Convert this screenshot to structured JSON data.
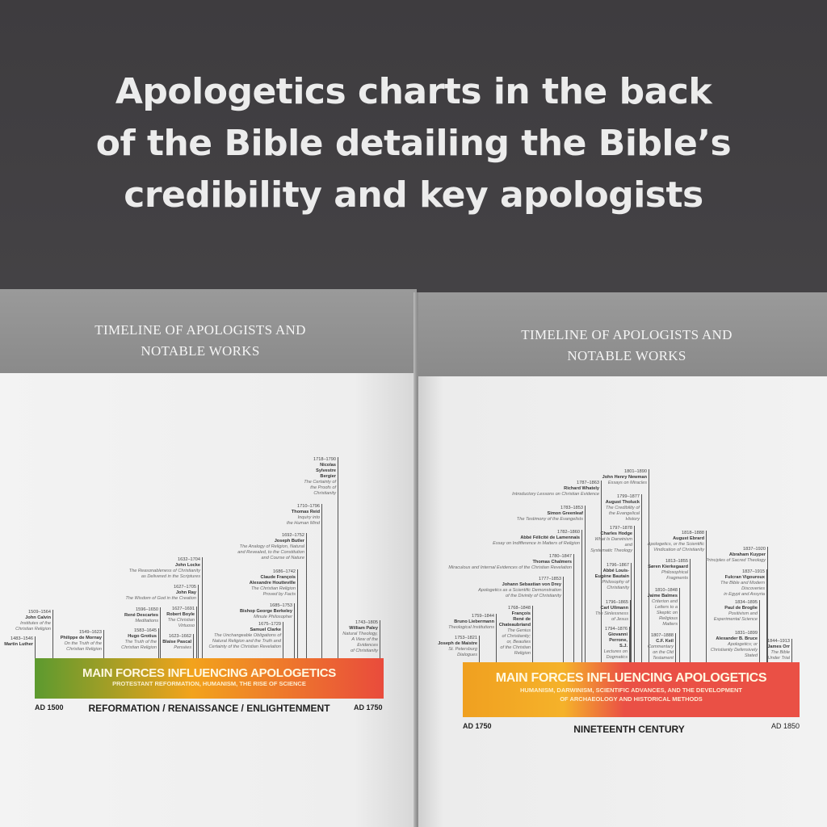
{
  "headline": {
    "line1": "Apologetics charts in the back",
    "line2": "of the Bible detailing the Bible’s",
    "line3": "credibility and key apologists"
  },
  "left_page": {
    "title_line1": "TIMELINE OF APOLOGISTS AND",
    "title_line2": "NOTABLE WORKS",
    "bar": {
      "title": "MAIN FORCES INFLUENCING APOLOGETICS",
      "subtitle": "PROTESTANT REFORMATION, HUMANISM, THE RISE OF SCIENCE",
      "colors": [
        "#5c9a2f",
        "#f2a31c",
        "#e94b3c"
      ]
    },
    "start_label": "AD 1500",
    "end_label": "AD 1750",
    "era": "REFORMATION / RENAISSANCE / ENLIGHTENMENT",
    "entries": [
      {
        "dates": "1483–1546",
        "name": "Martin Luther",
        "work": ""
      },
      {
        "dates": "1509–1564",
        "name": "John Calvin",
        "work": "Institutes of the\nChristian Religion"
      },
      {
        "dates": "1549–1623",
        "name": "Philippe de Mornay",
        "work": "On the Truth of the\nChristian Religion"
      },
      {
        "dates": "1583–1645",
        "name": "Hugo Grotius",
        "work": "The Truth of the\nChristian Religion"
      },
      {
        "dates": "1596–1650",
        "name": "René Descartes",
        "work": "Meditations"
      },
      {
        "dates": "1623–1662",
        "name": "Blaise Pascal",
        "work": "Pensées"
      },
      {
        "dates": "1627–1691",
        "name": "Robert Boyle",
        "work": "The Christian\nVirtuoso"
      },
      {
        "dates": "1627–1705",
        "name": "John Ray",
        "work": "The Wisdom of God in the Creation"
      },
      {
        "dates": "1632–1704",
        "name": "John Locke",
        "work": "The Reasonableness of Christianity\nas Delivered in the Scriptures"
      },
      {
        "dates": "1675–1729",
        "name": "Samuel Clarke",
        "work": "The Unchangeable Obligations of\nNatural Religion and the Truth and\nCertainty of the Christian Revelation"
      },
      {
        "dates": "1685–1753",
        "name": "Bishop George Berkeley",
        "work": "Minute Philosopher"
      },
      {
        "dates": "1686–1742",
        "name": "Claude François\nAlexandre Houtteville",
        "work": "The Christian Religion\nProved by Facts"
      },
      {
        "dates": "1692–1752",
        "name": "Joseph Butler",
        "work": "The Analogy of Religion, Natural\nand Revealed, to the Constitution\nand Course of Nature"
      },
      {
        "dates": "1710–1796",
        "name": "Thomas Reid",
        "work": "Inquiry into\nthe Human Mind"
      },
      {
        "dates": "1718–1790",
        "name": "Nicolas\nSylvestre\nBergier",
        "work": "The Certainty of\nthe Proofs of\nChristianity"
      },
      {
        "dates": "1743–1805",
        "name": "William Paley",
        "work": "Natural Theology,\nA View of the\nEvidences\nof Christianity"
      }
    ]
  },
  "right_page": {
    "title_line1": "TIMELINE OF APOLOGISTS AND",
    "title_line2": "NOTABLE WORKS",
    "bar": {
      "title": "MAIN FORCES INFLUENCING APOLOGETICS",
      "subtitle": "HUMANISM, DARWINISM, SCIENTIFIC ADVANCES, AND THE DEVELOPMENT\nOF ARCHAEOLOGY AND HISTORICAL METHODS",
      "colors": [
        "#f0a020",
        "#f5b22a",
        "#ea5045"
      ]
    },
    "start_label": "AD 1750",
    "end_label": "AD 1850",
    "era": "NINETEENTH CENTURY",
    "entries": [
      {
        "dates": "1753–1821",
        "name": "Joseph de Maistre",
        "work": "St. Petersburg\nDialogues"
      },
      {
        "dates": "1759–1844",
        "name": "Bruno Liebermann",
        "work": "Theological Institutions"
      },
      {
        "dates": "1768–1848",
        "name": "François\nRené de\nChateaubriand",
        "work": "The Genius\nof Christianity;\nor, Beauties\nof the Christian\nReligion"
      },
      {
        "dates": "1777–1853",
        "name": "Johann Sebastian von Drey",
        "work": "Apologetics as a Scientific Demonstration\nof the Divinity of Christianity"
      },
      {
        "dates": "1780–1847",
        "name": "Thomas Chalmers",
        "work": "Miraculous and Internal Evidences of the Christian Revelation"
      },
      {
        "dates": "1782–1860",
        "name": "Abbé Félicité de Lamennais",
        "work": "Essay on Indifference in Matters of Religion"
      },
      {
        "dates": "1783–1853",
        "name": "Simon Greenleaf",
        "work": "The Testimony of the Evangelists"
      },
      {
        "dates": "1787–1863",
        "name": "Richard Whately",
        "work": "Introductory Lessons on Christian Evidence"
      },
      {
        "dates": "1794–1876",
        "name": "Giovanni\nPerrone,\nS.J.",
        "work": "Lectures on\nDogmatics"
      },
      {
        "dates": "1796–1865",
        "name": "Carl Ullmann",
        "work": "The Sinlessness\nof Jesus"
      },
      {
        "dates": "1796–1867",
        "name": "Abbé Louis-\nEugène Bautain",
        "work": "Philosophy of\nChristianity"
      },
      {
        "dates": "1797–1878",
        "name": "Charles Hodge",
        "work": "What Is Darwinism\nand\nSystematic Theology"
      },
      {
        "dates": "1799–1877",
        "name": "August Tholuck",
        "work": "The Credibility of\nthe Evangelical\nHistory"
      },
      {
        "dates": "1801–1890",
        "name": "John Henry Newman",
        "work": "Essays on Miracles"
      },
      {
        "dates": "1807–1888",
        "name": "C.F. Keil",
        "work": "Commentary\non the Old\nTestament"
      },
      {
        "dates": "1810–1848",
        "name": "Jaime Balmes",
        "work": "Criterion and\nLetters to a\nSkeptic on\nReligious\nMatters"
      },
      {
        "dates": "1813–1855",
        "name": "Søren Kierkegaard",
        "work": "Philosophical\nFragments"
      },
      {
        "dates": "1818–1888",
        "name": "August Ebrard",
        "work": "Apologetics, or the Scientific\nVindication of Christianity"
      },
      {
        "dates": "1831–1899",
        "name": "Alexander B. Bruce",
        "work": "Apologetics; or\nChristianity Defensively\nStated"
      },
      {
        "dates": "1834–1895",
        "name": "Paul de Broglie",
        "work": "Positivism and\nExperimental Science"
      },
      {
        "dates": "1837–1915",
        "name": "Fulcran Vigouroux",
        "work": "The Bible and Modern\nDiscoveries\nin Egypt and Assyria"
      },
      {
        "dates": "1837–1920",
        "name": "Abraham Kuyper",
        "work": "Principles of Sacred Theology"
      },
      {
        "dates": "1844–1913",
        "name": "James Orr",
        "work": "The Bible\nUnder Trial"
      }
    ]
  }
}
